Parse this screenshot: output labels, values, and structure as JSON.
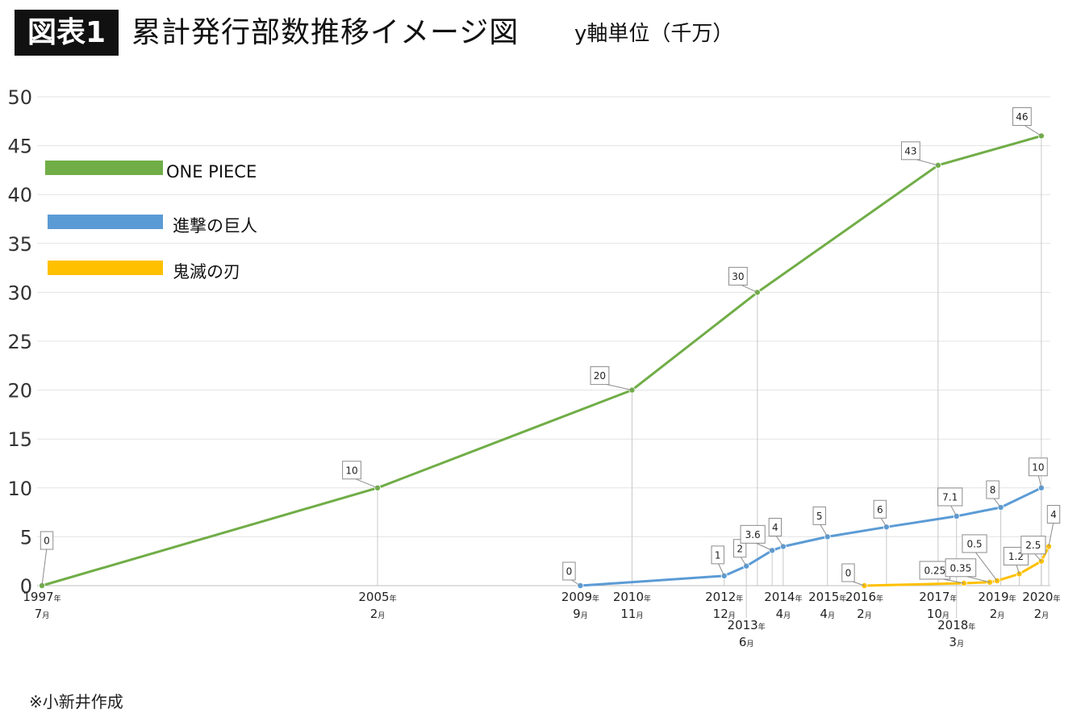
{
  "header": {
    "badge": "図表1",
    "title": "累計発行部数推移イメージ図",
    "unit_note": "y軸単位（千万）"
  },
  "footer": {
    "note": "※小新井作成"
  },
  "colors": {
    "one_piece": "#70ad47",
    "shingeki": "#5b9bd5",
    "kimetsu": "#ffc000",
    "grid": "#e3e3e3",
    "dropline": "#c8c8c8"
  },
  "chart_data": {
    "type": "line",
    "title": "累計発行部数推移イメージ図",
    "ylabel": "y軸単位（千万）",
    "ylim": [
      0,
      50
    ],
    "yticks": [
      0,
      5,
      10,
      15,
      20,
      25,
      30,
      35,
      40,
      45,
      50
    ],
    "grid": true,
    "legend_position": "top-left",
    "x_type": "date",
    "x_range": [
      "1997-07",
      "2020-04"
    ],
    "x_ticks": [
      {
        "date": "1997-07",
        "year": "1997",
        "month": "7",
        "row": 1
      },
      {
        "date": "2005-02",
        "year": "2005",
        "month": "2",
        "row": 1
      },
      {
        "date": "2009-09",
        "year": "2009",
        "month": "9",
        "row": 1
      },
      {
        "date": "2010-11",
        "year": "2010",
        "month": "11",
        "row": 1
      },
      {
        "date": "2012-12",
        "year": "2012",
        "month": "12",
        "row": 1
      },
      {
        "date": "2013-06",
        "year": "2013",
        "month": "6",
        "row": 2
      },
      {
        "date": "2014-04",
        "year": "2014",
        "month": "4",
        "row": 1
      },
      {
        "date": "2015-04",
        "year": "2015",
        "month": "4",
        "row": 1
      },
      {
        "date": "2016-02",
        "year": "2016",
        "month": "2",
        "row": 1
      },
      {
        "date": "2017-10",
        "year": "2017",
        "month": "10",
        "row": 1
      },
      {
        "date": "2018-03",
        "year": "2018",
        "month": "3",
        "row": 2
      },
      {
        "date": "2019-02",
        "year": "2019",
        "month": "2",
        "row": 1
      },
      {
        "date": "2020-02",
        "year": "2020",
        "month": "2",
        "row": 1
      }
    ],
    "year_suffix": "年",
    "month_suffix": "月",
    "series": [
      {
        "name": "ONE PIECE",
        "color": "#70ad47",
        "points": [
          {
            "x": "1997-07",
            "y": 0,
            "label": "0"
          },
          {
            "x": "2005-02",
            "y": 10,
            "label": "10"
          },
          {
            "x": "2010-11",
            "y": 20,
            "label": "20"
          },
          {
            "x": "2013-09",
            "y": 30,
            "label": "30"
          },
          {
            "x": "2017-10",
            "y": 43,
            "label": "43"
          },
          {
            "x": "2020-02",
            "y": 46,
            "label": "46"
          }
        ]
      },
      {
        "name": "進撃の巨人",
        "color": "#5b9bd5",
        "points": [
          {
            "x": "2009-09",
            "y": 0,
            "label": "0"
          },
          {
            "x": "2012-12",
            "y": 1,
            "label": "1"
          },
          {
            "x": "2013-06",
            "y": 2,
            "label": "2"
          },
          {
            "x": "2014-01",
            "y": 3.6,
            "label": "3.6"
          },
          {
            "x": "2014-04",
            "y": 4,
            "label": "4"
          },
          {
            "x": "2015-04",
            "y": 5,
            "label": "5"
          },
          {
            "x": "2016-08",
            "y": 6,
            "label": "6"
          },
          {
            "x": "2018-03",
            "y": 7.1,
            "label": "7.1"
          },
          {
            "x": "2019-03",
            "y": 8,
            "label": "8"
          },
          {
            "x": "2020-02",
            "y": 10,
            "label": "10"
          }
        ]
      },
      {
        "name": "鬼滅の刃",
        "color": "#ffc000",
        "points": [
          {
            "x": "2016-02",
            "y": 0,
            "label": "0"
          },
          {
            "x": "2018-05",
            "y": 0.25,
            "label": "0.25"
          },
          {
            "x": "2018-12",
            "y": 0.35,
            "label": "0.35"
          },
          {
            "x": "2019-02",
            "y": 0.5,
            "label": "0.5"
          },
          {
            "x": "2019-08",
            "y": 1.2,
            "label": "1.2"
          },
          {
            "x": "2020-02",
            "y": 2.5,
            "label": "2.5"
          },
          {
            "x": "2020-04",
            "y": 4,
            "label": "4"
          }
        ]
      }
    ]
  }
}
